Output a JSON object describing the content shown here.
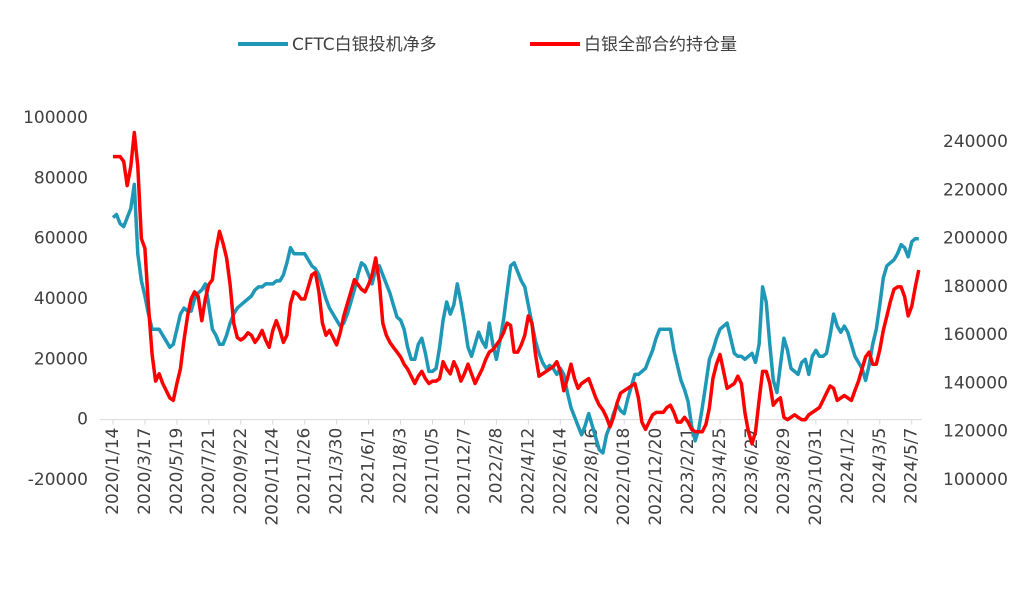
{
  "chart_data": {
    "type": "line",
    "categories": [
      "2020/1/14",
      null,
      null,
      null,
      null,
      null,
      null,
      null,
      null,
      "2020/3/17",
      null,
      null,
      null,
      null,
      null,
      null,
      null,
      null,
      "2020/5/19",
      null,
      null,
      null,
      null,
      null,
      null,
      null,
      null,
      "2020/7/21",
      null,
      null,
      null,
      null,
      null,
      null,
      null,
      null,
      "2020/9/22",
      null,
      null,
      null,
      null,
      null,
      null,
      null,
      null,
      "2020/11/24",
      null,
      null,
      null,
      null,
      null,
      null,
      null,
      null,
      "2021/1/26",
      null,
      null,
      null,
      null,
      null,
      null,
      null,
      null,
      "2021/3/30",
      null,
      null,
      null,
      null,
      null,
      null,
      null,
      null,
      "2021/6/1",
      null,
      null,
      null,
      null,
      null,
      null,
      null,
      null,
      "2021/8/3",
      null,
      null,
      null,
      null,
      null,
      null,
      null,
      null,
      "2021/10/5",
      null,
      null,
      null,
      null,
      null,
      null,
      null,
      null,
      "2021/12/7",
      null,
      null,
      null,
      null,
      null,
      null,
      null,
      null,
      "2022/2/8",
      null,
      null,
      null,
      null,
      null,
      null,
      null,
      null,
      "2022/4/12",
      null,
      null,
      null,
      null,
      null,
      null,
      null,
      null,
      "2022/6/14",
      null,
      null,
      null,
      null,
      null,
      null,
      null,
      null,
      "2022/8/16",
      null,
      null,
      null,
      null,
      null,
      null,
      null,
      null,
      "2022/10/18",
      null,
      null,
      null,
      null,
      null,
      null,
      null,
      null,
      "2022/12/20",
      null,
      null,
      null,
      null,
      null,
      null,
      null,
      null,
      "2023/2/21",
      null,
      null,
      null,
      null,
      null,
      null,
      null,
      null,
      "2023/4/25",
      null,
      null,
      null,
      null,
      null,
      null,
      null,
      null,
      "2023/6/27",
      null,
      null,
      null,
      null,
      null,
      null,
      null,
      null,
      "2023/8/29",
      null,
      null,
      null,
      null,
      null,
      null,
      null,
      null,
      "2023/10/31",
      null,
      null,
      null,
      null,
      null,
      null,
      null,
      null,
      "2024/1/2",
      null,
      null,
      null,
      null,
      null,
      null,
      null,
      null,
      "2024/3/5",
      null,
      null,
      null,
      null,
      null,
      null,
      null,
      null,
      "2024/5/7",
      null,
      null
    ],
    "series": [
      {
        "name": "CFTC白银投机净多",
        "color": "#1e98b6",
        "axis": "y",
        "values": [
          67000,
          68000,
          65000,
          64000,
          67000,
          70000,
          78000,
          55000,
          46000,
          41000,
          35000,
          30000,
          30000,
          30000,
          28000,
          26000,
          24000,
          25000,
          30000,
          35000,
          37000,
          36000,
          36000,
          40000,
          42000,
          43000,
          45000,
          38000,
          30000,
          28000,
          25000,
          25000,
          28000,
          32000,
          35000,
          37000,
          38000,
          39000,
          40000,
          41000,
          43000,
          44000,
          44000,
          45000,
          45000,
          45000,
          46000,
          46000,
          48000,
          52000,
          57000,
          55000,
          55000,
          55000,
          55000,
          53000,
          51000,
          50000,
          48000,
          44000,
          40000,
          37000,
          35000,
          33000,
          31000,
          32000,
          35000,
          39000,
          43000,
          48000,
          52000,
          51000,
          48000,
          45000,
          50000,
          51000,
          48000,
          45000,
          42000,
          38000,
          34000,
          33000,
          30000,
          24000,
          20000,
          20000,
          25000,
          27000,
          22000,
          16000,
          16000,
          17000,
          24000,
          33000,
          39000,
          35000,
          38000,
          45000,
          39000,
          32000,
          24000,
          21000,
          25000,
          29000,
          26000,
          24000,
          32000,
          25000,
          20000,
          26000,
          33000,
          42000,
          51000,
          52000,
          49000,
          46000,
          44000,
          38000,
          32000,
          26000,
          22000,
          19000,
          17000,
          18000,
          17000,
          15000,
          17000,
          15000,
          9000,
          4000,
          1000,
          -2000,
          -5000,
          -2000,
          2000,
          -2000,
          -6000,
          -10000,
          -11000,
          -5000,
          -2000,
          2000,
          5000,
          3000,
          2000,
          7000,
          11000,
          15000,
          15000,
          16000,
          17000,
          20000,
          23000,
          27000,
          30000,
          30000,
          30000,
          30000,
          23000,
          18000,
          13000,
          10000,
          6000,
          -2000,
          -7000,
          -3000,
          4000,
          12000,
          20000,
          23000,
          27000,
          30000,
          31000,
          32000,
          27000,
          22000,
          21000,
          21000,
          20000,
          21000,
          22000,
          19000,
          25000,
          44000,
          39000,
          25000,
          13000,
          9000,
          18000,
          27000,
          23000,
          17000,
          16000,
          15000,
          19000,
          20000,
          15000,
          21000,
          23000,
          21000,
          21000,
          22000,
          28000,
          35000,
          31000,
          29000,
          31000,
          29000,
          25000,
          21000,
          19000,
          17000,
          13000,
          18000,
          25000,
          30000,
          38000,
          47000,
          51000,
          52000,
          53000,
          55000,
          58000,
          57000,
          54000,
          59000,
          60000,
          60000
        ]
      },
      {
        "name": "白银全部合约持仓量",
        "color": "#ff0000",
        "axis": "y2",
        "values": [
          234000,
          234000,
          234000,
          232000,
          222000,
          230000,
          244000,
          230000,
          200000,
          196000,
          172000,
          152000,
          141000,
          144000,
          140000,
          137000,
          134000,
          133000,
          140000,
          146000,
          158000,
          168000,
          175000,
          178000,
          176000,
          166000,
          175000,
          181000,
          183000,
          195000,
          203000,
          198000,
          192000,
          181000,
          165000,
          159000,
          158000,
          159000,
          161000,
          160000,
          157000,
          159000,
          162000,
          158000,
          155000,
          162000,
          166000,
          162000,
          157000,
          160000,
          173000,
          178000,
          177000,
          175000,
          175000,
          180000,
          185000,
          186000,
          178000,
          165000,
          160000,
          162000,
          159000,
          156000,
          161000,
          168000,
          173000,
          178000,
          183000,
          181000,
          179000,
          178000,
          181000,
          185000,
          192000,
          182000,
          165000,
          160000,
          157000,
          155000,
          153000,
          151000,
          148000,
          146000,
          143000,
          140000,
          143000,
          145000,
          142000,
          140000,
          141000,
          141000,
          142000,
          149000,
          146000,
          144000,
          149000,
          146000,
          141000,
          144000,
          148000,
          144000,
          140000,
          143000,
          146000,
          150000,
          153000,
          154000,
          156000,
          158000,
          161000,
          165000,
          164000,
          153000,
          153000,
          156000,
          160000,
          168000,
          165000,
          152000,
          143000,
          144000,
          145000,
          146000,
          147000,
          149000,
          145000,
          137000,
          142000,
          148000,
          142000,
          138000,
          140000,
          141000,
          142000,
          138000,
          134000,
          131000,
          129000,
          126000,
          122000,
          126000,
          132000,
          136000,
          137000,
          138000,
          139000,
          140000,
          134000,
          124000,
          121000,
          124000,
          127000,
          128000,
          128000,
          128000,
          130000,
          131000,
          128000,
          124000,
          124000,
          126000,
          124000,
          121000,
          120000,
          120000,
          120000,
          123000,
          130000,
          142000,
          148000,
          152000,
          145000,
          138000,
          139000,
          140000,
          143000,
          140000,
          128000,
          120000,
          115000,
          120000,
          133000,
          145000,
          145000,
          140000,
          131000,
          133000,
          134000,
          126000,
          125000,
          126000,
          127000,
          126000,
          125000,
          125000,
          127000,
          128000,
          129000,
          130000,
          133000,
          136000,
          139000,
          138000,
          133000,
          134000,
          135000,
          134000,
          133000,
          137000,
          141000,
          146000,
          151000,
          153000,
          148000,
          148000,
          154000,
          162000,
          168000,
          174000,
          179000,
          180000,
          180000,
          176000,
          168000,
          172000,
          180000,
          187000
        ]
      }
    ],
    "ylim": [
      -20000,
      100000
    ],
    "yticks": [
      -20000,
      0,
      20000,
      40000,
      60000,
      80000,
      100000
    ],
    "y2lim": [
      100000,
      250000
    ],
    "y2ticks": [
      100000,
      120000,
      140000,
      160000,
      180000,
      200000,
      220000,
      240000
    ],
    "legend": "top",
    "grid": false
  }
}
